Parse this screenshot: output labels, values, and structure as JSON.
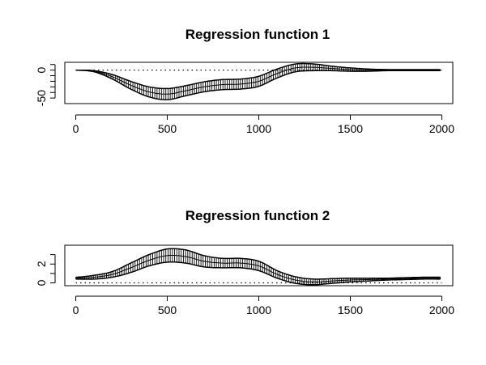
{
  "chart_data": [
    {
      "type": "line",
      "title": "Regression function  1",
      "xlabel": "",
      "ylabel": "",
      "xlim": [
        -60,
        2060
      ],
      "ylim": [
        -60,
        14
      ],
      "x_ticks": [
        0,
        500,
        1000,
        1500,
        2000
      ],
      "x_tick_labels": [
        "0",
        "500",
        "1000",
        "1500",
        "2000"
      ],
      "y_ticks": [
        -50,
        -40,
        -30,
        -20,
        -10,
        0,
        10
      ],
      "y_tick_labels": [
        "-50",
        "",
        "",
        "",
        "",
        "0",
        ""
      ],
      "reference_line": 0,
      "grid": false,
      "x": [
        0,
        100,
        200,
        300,
        400,
        500,
        600,
        700,
        800,
        900,
        1000,
        1100,
        1200,
        1300,
        1400,
        1500,
        1600,
        1700,
        1800,
        1900,
        2000
      ],
      "series": [
        {
          "values": [
            0,
            -2,
            -12,
            -27,
            -39,
            -43,
            -37,
            -30,
            -26,
            -25,
            -20,
            -6,
            4,
            5,
            3,
            1,
            0,
            0,
            0,
            0,
            0
          ]
        }
      ],
      "band_halfwidth": [
        0,
        1,
        4,
        7,
        9,
        10,
        9,
        9,
        9,
        9,
        9,
        8,
        7,
        6,
        4,
        3,
        2,
        1,
        1,
        1,
        1
      ]
    },
    {
      "type": "line",
      "title": "Regression function  2",
      "xlabel": "",
      "ylabel": "",
      "xlim": [
        -60,
        2060
      ],
      "ylim": [
        -0.3,
        4.0
      ],
      "x_ticks": [
        0,
        500,
        1000,
        1500,
        2000
      ],
      "x_tick_labels": [
        "0",
        "500",
        "1000",
        "1500",
        "2000"
      ],
      "y_ticks": [
        0,
        1,
        2,
        3
      ],
      "y_tick_labels": [
        "0",
        "",
        "2",
        ""
      ],
      "reference_line": 0,
      "grid": false,
      "x": [
        0,
        100,
        200,
        300,
        400,
        500,
        600,
        700,
        800,
        900,
        1000,
        1100,
        1200,
        1300,
        1400,
        1500,
        1600,
        1700,
        1800,
        1900,
        2000
      ],
      "series": [
        {
          "values": [
            0.5,
            0.6,
            0.9,
            1.6,
            2.4,
            2.9,
            2.8,
            2.3,
            2.1,
            2.1,
            1.8,
            0.9,
            0.3,
            0.1,
            0.2,
            0.3,
            0.35,
            0.4,
            0.45,
            0.5,
            0.5
          ]
        }
      ],
      "band_halfwidth": [
        0.1,
        0.2,
        0.3,
        0.5,
        0.6,
        0.7,
        0.7,
        0.6,
        0.5,
        0.5,
        0.5,
        0.4,
        0.35,
        0.3,
        0.25,
        0.2,
        0.15,
        0.1,
        0.1,
        0.1,
        0.1
      ]
    }
  ]
}
